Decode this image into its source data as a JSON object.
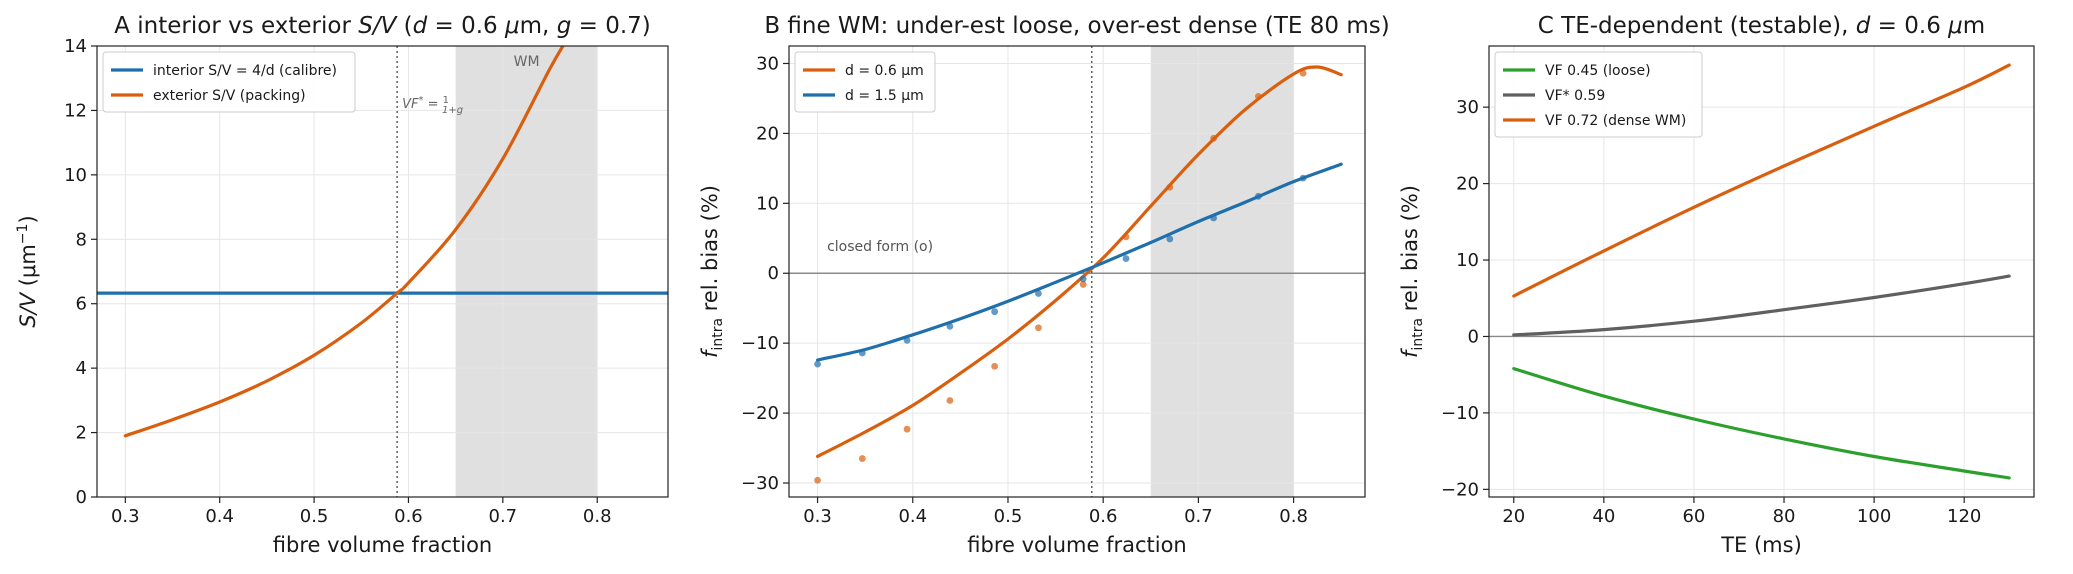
{
  "chart_data": [
    {
      "panel": "A",
      "type": "line",
      "title_letter": "A",
      "title_text": "interior vs exterior ",
      "title_math": "S/V (d = 0.6 μm, g = 0.7)",
      "xlabel": "fibre volume fraction",
      "ylabel": "S/V (μm⁻¹)",
      "xlim": [
        0.27,
        0.875
      ],
      "ylim": [
        0,
        14
      ],
      "xticks": [
        "0.3",
        "0.4",
        "0.5",
        "0.6",
        "0.7",
        "0.8"
      ],
      "xtick_values": [
        0.3,
        0.4,
        0.5,
        0.6,
        0.7,
        0.8
      ],
      "yticks": [
        "0",
        "2",
        "4",
        "6",
        "8",
        "10",
        "12",
        "14"
      ],
      "ytick_values": [
        0,
        2,
        4,
        6,
        8,
        10,
        12,
        14
      ],
      "grid": true,
      "legend_placement": "upper-left",
      "shaded_region": {
        "x": [
          0.65,
          0.8
        ],
        "label": "WM",
        "color": "#e0e0e0"
      },
      "vline": {
        "x": 0.588,
        "label": "VF* = 1/(1+g)"
      },
      "series": [
        {
          "name": "interior S/V = 4/d (calibre)",
          "color": "#1f6fad",
          "x": [
            0.27,
            0.875
          ],
          "y": [
            6.33,
            6.33
          ]
        },
        {
          "name": "exterior S/V (packing)",
          "color": "#d95f0e",
          "x": [
            0.3,
            0.35,
            0.4,
            0.45,
            0.5,
            0.55,
            0.588,
            0.6,
            0.65,
            0.7,
            0.75,
            0.77
          ],
          "y": [
            1.9,
            2.4,
            2.95,
            3.6,
            4.4,
            5.4,
            6.33,
            6.65,
            8.3,
            10.5,
            13.3,
            14.3
          ]
        }
      ]
    },
    {
      "panel": "B",
      "type": "line",
      "title_letter": "B",
      "title_text": "fine WM: under-est loose, over-est dense (TE 80 ms)",
      "xlabel": "fibre volume fraction",
      "ylabel": "f_intra rel. bias (%)",
      "xlim": [
        0.27,
        0.875
      ],
      "ylim": [
        -32,
        32.5
      ],
      "xticks": [
        "0.3",
        "0.4",
        "0.5",
        "0.6",
        "0.7",
        "0.8"
      ],
      "xtick_values": [
        0.3,
        0.4,
        0.5,
        0.6,
        0.7,
        0.8
      ],
      "yticks": [
        "−30",
        "−20",
        "−10",
        "0",
        "10",
        "20",
        "30"
      ],
      "ytick_values": [
        -30,
        -20,
        -10,
        0,
        10,
        20,
        30
      ],
      "grid": true,
      "legend_placement": "upper-left",
      "shaded_region": {
        "x": [
          0.65,
          0.8
        ],
        "color": "#e0e0e0"
      },
      "vline": {
        "x": 0.588
      },
      "hline": {
        "y": 0
      },
      "annotation": "closed form (o)",
      "series": [
        {
          "name": "d = 0.6 μm",
          "color": "#d95f0e",
          "x": [
            0.3,
            0.35,
            0.4,
            0.45,
            0.5,
            0.55,
            0.6,
            0.65,
            0.7,
            0.75,
            0.8,
            0.825,
            0.85
          ],
          "y": [
            -26.2,
            -22.7,
            -18.9,
            -14.3,
            -9.4,
            -3.9,
            2.2,
            9.6,
            17.0,
            23.5,
            28.5,
            29.5,
            28.4
          ],
          "points_x": [
            0.3,
            0.347,
            0.394,
            0.439,
            0.486,
            0.532,
            0.579,
            0.624,
            0.67,
            0.716,
            0.763,
            0.81
          ],
          "points_y": [
            -29.6,
            -26.5,
            -22.3,
            -18.2,
            -13.3,
            -7.8,
            -1.6,
            5.2,
            12.3,
            19.3,
            25.3,
            28.6
          ]
        },
        {
          "name": "d = 1.5 μm",
          "color": "#1f6fad",
          "x": [
            0.3,
            0.35,
            0.4,
            0.45,
            0.5,
            0.55,
            0.6,
            0.65,
            0.7,
            0.75,
            0.8,
            0.85
          ],
          "y": [
            -12.4,
            -10.9,
            -8.8,
            -6.5,
            -4.0,
            -1.3,
            1.5,
            4.4,
            7.4,
            10.2,
            13.1,
            15.6
          ],
          "points_x": [
            0.3,
            0.347,
            0.394,
            0.439,
            0.486,
            0.532,
            0.579,
            0.624,
            0.67,
            0.716,
            0.763,
            0.81
          ],
          "points_y": [
            -13.0,
            -11.4,
            -9.6,
            -7.6,
            -5.5,
            -2.9,
            -0.8,
            2.1,
            4.9,
            7.9,
            11.0,
            13.6
          ]
        }
      ]
    },
    {
      "panel": "C",
      "type": "line",
      "title_letter": "C",
      "title_text": "TE-dependent (testable), ",
      "title_math": "d = 0.6 μm",
      "xlabel": "TE (ms)",
      "ylabel": "f_intra rel. bias (%)",
      "xlim": [
        14.5,
        135.5
      ],
      "ylim": [
        -21,
        38
      ],
      "xticks": [
        "20",
        "40",
        "60",
        "80",
        "100",
        "120"
      ],
      "xtick_values": [
        20,
        40,
        60,
        80,
        100,
        120
      ],
      "yticks": [
        "−20",
        "−10",
        "0",
        "10",
        "20",
        "30"
      ],
      "ytick_values": [
        -20,
        -10,
        0,
        10,
        20,
        30
      ],
      "grid": true,
      "legend_placement": "upper-left",
      "hline": {
        "y": 0
      },
      "series": [
        {
          "name": "VF 0.45 (loose)",
          "color": "#2ca02c",
          "x": [
            20,
            40,
            60,
            80,
            100,
            120,
            130
          ],
          "y": [
            -4.2,
            -7.8,
            -10.8,
            -13.4,
            -15.7,
            -17.6,
            -18.5
          ]
        },
        {
          "name": "VF* 0.59",
          "color": "#606060",
          "x": [
            20,
            40,
            60,
            80,
            100,
            120,
            130
          ],
          "y": [
            0.2,
            0.9,
            2.0,
            3.5,
            5.1,
            6.9,
            7.9
          ]
        },
        {
          "name": "VF 0.72 (dense WM)",
          "color": "#d95f0e",
          "x": [
            20,
            40,
            60,
            80,
            100,
            120,
            130
          ],
          "y": [
            5.3,
            11.2,
            16.9,
            22.3,
            27.5,
            32.6,
            35.5
          ]
        }
      ]
    }
  ]
}
